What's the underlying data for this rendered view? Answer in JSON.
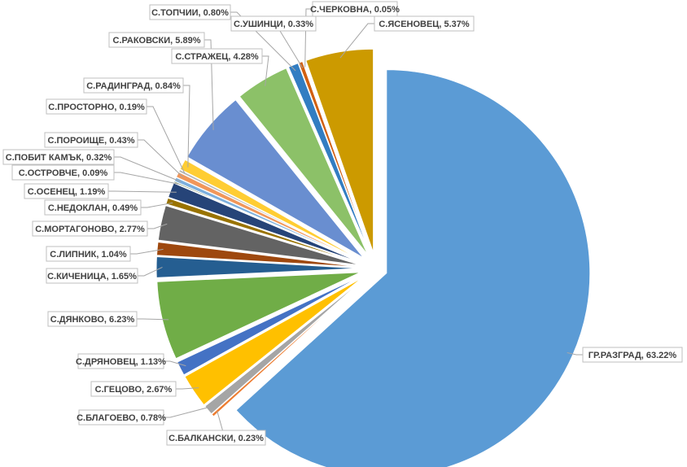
{
  "chart_data": {
    "type": "pie",
    "start_angle_deg": 0,
    "direction": "clockwise",
    "slices": [
      {
        "label": "ГР.РАЗГРАД",
        "value": 63.22,
        "value_text": "63.22%",
        "color": "#5B9BD5"
      },
      {
        "label": "С.БАЛКАНСКИ",
        "value": 0.23,
        "value_text": "0.23%",
        "color": "#ED7D31"
      },
      {
        "label": "С.БЛАГОЕВО",
        "value": 0.78,
        "value_text": "0.78%",
        "color": "#A5A5A5"
      },
      {
        "label": "С.ГЕЦОВО",
        "value": 2.67,
        "value_text": "2.67%",
        "color": "#FFC000"
      },
      {
        "label": "С.ДРЯНОВЕЦ",
        "value": 1.13,
        "value_text": "1.13%",
        "color": "#4472C4"
      },
      {
        "label": "С.ДЯНКОВО",
        "value": 6.23,
        "value_text": "6.23%",
        "color": "#70AD47"
      },
      {
        "label": "С.КИЧЕНИЦА",
        "value": 1.65,
        "value_text": "1.65%",
        "color": "#255E91"
      },
      {
        "label": "С.ЛИПНИК",
        "value": 1.04,
        "value_text": "1.04%",
        "color": "#9E480E"
      },
      {
        "label": "С.МОРТАГОНОВО",
        "value": 2.77,
        "value_text": "2.77%",
        "color": "#636363"
      },
      {
        "label": "С.НЕДОКЛАН",
        "value": 0.49,
        "value_text": "0.49%",
        "color": "#997300"
      },
      {
        "label": "С.ОСЕНЕЦ",
        "value": 1.19,
        "value_text": "1.19%",
        "color": "#264478"
      },
      {
        "label": "С.ОСТРОВЧЕ",
        "value": 0.09,
        "value_text": "0.09%",
        "color": "#43682B"
      },
      {
        "label": "С.ПОБИТ КАМЪК",
        "value": 0.32,
        "value_text": "0.32%",
        "color": "#7CAFDD"
      },
      {
        "label": "С.ПОРОИЩЕ",
        "value": 0.43,
        "value_text": "0.43%",
        "color": "#F1975A"
      },
      {
        "label": "С.ПРОСТОРНО",
        "value": 0.19,
        "value_text": "0.19%",
        "color": "#B7B7B7"
      },
      {
        "label": "С.РАДИНГРАД",
        "value": 0.84,
        "value_text": "0.84%",
        "color": "#FFCD33"
      },
      {
        "label": "С.РАКОВСКИ",
        "value": 5.89,
        "value_text": "5.89%",
        "color": "#698ED0"
      },
      {
        "label": "С.СТРАЖЕЦ",
        "value": 4.28,
        "value_text": "4.28%",
        "color": "#8CC168"
      },
      {
        "label": "С.ТОПЧИИ",
        "value": 0.8,
        "value_text": "0.80%",
        "color": "#327DC2"
      },
      {
        "label": "С.УШИНЦИ",
        "value": 0.33,
        "value_text": "0.33%",
        "color": "#D26012"
      },
      {
        "label": "С.ЧЕРКОВНА",
        "value": 0.05,
        "value_text": "0.05%",
        "color": "#8F8F8F"
      },
      {
        "label": "С.ЯСЕНОВЕЦ",
        "value": 5.37,
        "value_text": "5.37%",
        "color": "#CC9A00"
      }
    ]
  }
}
